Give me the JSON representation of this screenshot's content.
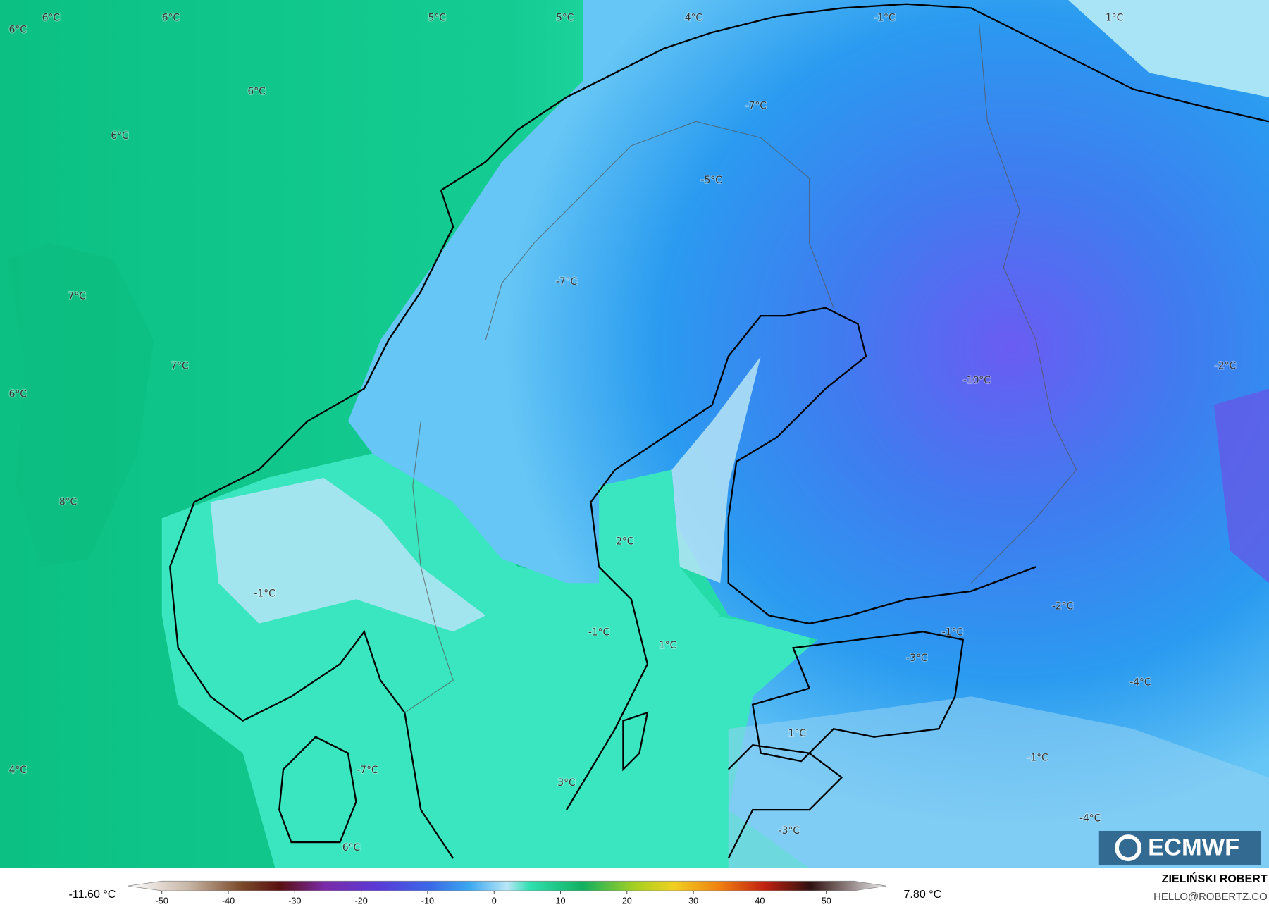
{
  "map": {
    "labels": [
      "6°C",
      "6°C",
      "6°C",
      "5°C",
      "5°C",
      "4°C",
      "-1°C",
      "1°C",
      "6°C",
      "6°C",
      "-7°C",
      "-5°C",
      "7°C",
      "-7°C",
      "7°C",
      "6°C",
      "-10°C",
      "-2°C",
      "8°C",
      "2°C",
      "-1°C",
      "-2°C",
      "-1°C",
      "1°C",
      "-1°C",
      "-3°C",
      "-4°C",
      "1°C",
      "-1°C",
      "4°C",
      "-7°C",
      "3°C",
      "-4°C",
      "-3°C",
      "6°C"
    ],
    "logo": "ECMWF"
  },
  "colorbar": {
    "min_label": "-11.60 °C",
    "max_label": "7.80 °C",
    "ticks": [
      -50,
      -40,
      -30,
      -20,
      -10,
      0,
      10,
      20,
      30,
      40,
      50
    ]
  },
  "credit": {
    "author": "ZIELIŃSKI ROBERT",
    "email": "HELLO@ROBERTZ.CO"
  }
}
